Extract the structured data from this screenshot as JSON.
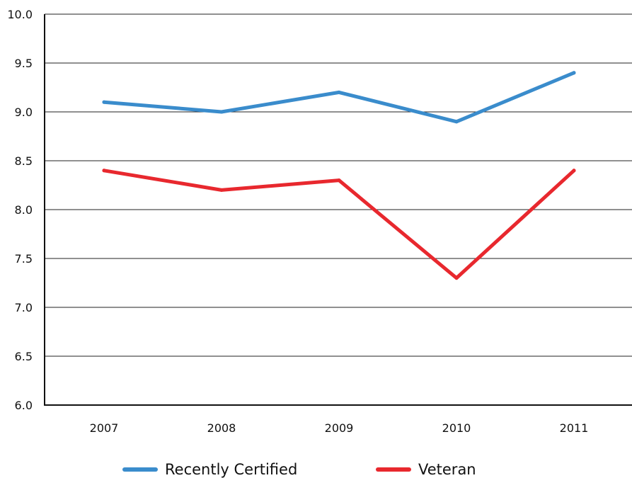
{
  "chart_data": {
    "type": "line",
    "categories": [
      "2007",
      "2008",
      "2009",
      "2010",
      "2011"
    ],
    "series": [
      {
        "name": "Recently Certified",
        "color": "#3a8ccc",
        "values": [
          9.1,
          9.0,
          9.2,
          8.9,
          9.4
        ]
      },
      {
        "name": "Veteran",
        "color": "#e8282e",
        "values": [
          8.4,
          8.2,
          8.3,
          7.3,
          8.4
        ]
      }
    ],
    "ylim": [
      6.0,
      10.0
    ],
    "yticks": [
      "6.0",
      "6.5",
      "7.0",
      "7.5",
      "8.0",
      "8.5",
      "9.0",
      "9.5",
      "10.0"
    ],
    "grid": true,
    "legend": "bottom",
    "title": "",
    "xlabel": "",
    "ylabel": ""
  }
}
